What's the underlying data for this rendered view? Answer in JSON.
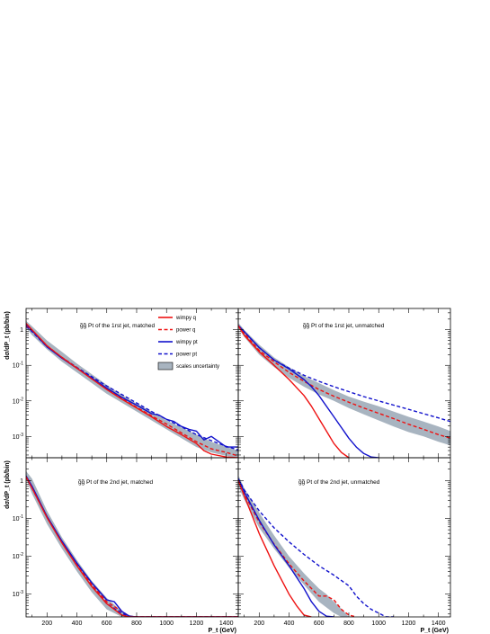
{
  "chart_data": {
    "type": "line",
    "xlabel": "P_t (GeV)",
    "ylabel": "dσ/dP_t (pb/bin)",
    "xlim": [
      60,
      1480
    ],
    "ylim_log10": [
      -3.6,
      0.6
    ],
    "x_ticks": [
      200,
      400,
      600,
      800,
      1000,
      1200,
      1400
    ],
    "x_tick_labels": [
      "200",
      "400",
      "600",
      "800",
      "1000",
      "1200",
      "1400"
    ],
    "y_ticks_log10": [
      0,
      -1,
      -2,
      -3
    ],
    "y_tick_labels": [
      {
        "base": "1",
        "exp": ""
      },
      {
        "base": "10",
        "exp": "-1"
      },
      {
        "base": "10",
        "exp": "-2"
      },
      {
        "base": "10",
        "exp": "-3"
      }
    ],
    "legend": {
      "placement": "top-center of first panel",
      "entries": [
        {
          "key": "wimpy_q",
          "label": "wimpy q",
          "color": "#ee1111",
          "dash": false
        },
        {
          "key": "power_q",
          "label": "power q",
          "color": "#ee1111",
          "dash": true
        },
        {
          "key": "wimpy_pt",
          "label": "wimpy pt",
          "color": "#1111cc",
          "dash": false
        },
        {
          "key": "power_pt",
          "label": "power pt",
          "color": "#1111cc",
          "dash": true
        },
        {
          "key": "band",
          "label": "scales uncertainty",
          "color": "#a8b4c0",
          "box": true
        }
      ]
    },
    "panels": [
      {
        "title_prefix": "g̃g̃",
        "title": " Pt of the 1rst jet, matched",
        "series": {
          "band": {
            "x": [
              60,
              100,
              200,
              300,
              400,
              500,
              600,
              700,
              800,
              900,
              1000,
              1100,
              1200,
              1300,
              1400,
              1480
            ],
            "lo": [
              0.05,
              -0.15,
              -0.55,
              -0.9,
              -1.2,
              -1.5,
              -1.8,
              -2.05,
              -2.3,
              -2.55,
              -2.8,
              -3.05,
              -3.3,
              -3.45,
              -3.55,
              -3.6
            ],
            "hi": [
              0.25,
              0.1,
              -0.3,
              -0.62,
              -0.95,
              -1.25,
              -1.55,
              -1.83,
              -2.08,
              -2.3,
              -2.55,
              -2.75,
              -2.95,
              -3.15,
              -3.3,
              -3.4
            ]
          },
          "wimpy_q": {
            "x": [
              60,
              100,
              200,
              300,
              400,
              500,
              600,
              700,
              800,
              900,
              1000,
              1100,
              1200,
              1250,
              1300,
              1400,
              1480
            ],
            "y": [
              0.18,
              0.0,
              -0.45,
              -0.78,
              -1.08,
              -1.38,
              -1.68,
              -1.95,
              -2.2,
              -2.45,
              -2.72,
              -2.95,
              -3.2,
              -3.4,
              -3.5,
              -3.58,
              -3.6
            ]
          },
          "power_q": {
            "x": [
              60,
              100,
              200,
              300,
              400,
              500,
              600,
              700,
              800,
              900,
              1000,
              1100,
              1200,
              1300,
              1400,
              1480
            ],
            "y": [
              0.12,
              -0.02,
              -0.45,
              -0.78,
              -1.07,
              -1.37,
              -1.66,
              -1.93,
              -2.18,
              -2.42,
              -2.65,
              -2.9,
              -3.15,
              -3.35,
              -3.45,
              -3.55
            ]
          },
          "wimpy_pt": {
            "x": [
              60,
              100,
              200,
              300,
              400,
              500,
              600,
              700,
              800,
              900,
              950,
              1000,
              1050,
              1100,
              1150,
              1200,
              1250,
              1300,
              1350,
              1400,
              1480
            ],
            "y": [
              0.15,
              -0.02,
              -0.48,
              -0.8,
              -1.08,
              -1.36,
              -1.64,
              -1.9,
              -2.12,
              -2.36,
              -2.4,
              -2.52,
              -2.58,
              -2.72,
              -2.8,
              -2.85,
              -3.1,
              -3.0,
              -3.15,
              -3.3,
              -3.3
            ]
          },
          "power_pt": {
            "x": [
              60,
              100,
              200,
              300,
              400,
              500,
              600,
              700,
              800,
              900,
              1000,
              1100,
              1200,
              1300,
              1400,
              1480
            ],
            "y": [
              0.1,
              -0.05,
              -0.48,
              -0.78,
              -1.06,
              -1.32,
              -1.58,
              -1.82,
              -2.06,
              -2.3,
              -2.52,
              -2.73,
              -2.95,
              -3.12,
              -3.28,
              -3.38
            ]
          }
        }
      },
      {
        "title_prefix": "g̃g̃",
        "title": " Pt of the 1rst jet, unmatched",
        "series": {
          "band": {
            "x": [
              60,
              100,
              200,
              300,
              400,
              500,
              600,
              700,
              800,
              900,
              1000,
              1100,
              1200,
              1300,
              1400,
              1480
            ],
            "lo": [
              0.05,
              -0.2,
              -0.7,
              -1.05,
              -1.35,
              -1.6,
              -1.82,
              -2.0,
              -2.2,
              -2.38,
              -2.55,
              -2.72,
              -2.88,
              -3.0,
              -3.15,
              -3.25
            ],
            "hi": [
              0.2,
              0.0,
              -0.42,
              -0.78,
              -1.05,
              -1.3,
              -1.5,
              -1.7,
              -1.88,
              -2.02,
              -2.15,
              -2.3,
              -2.45,
              -2.58,
              -2.72,
              -2.85
            ]
          },
          "wimpy_q": {
            "x": [
              60,
              100,
              200,
              300,
              400,
              500,
              550,
              600,
              650,
              700,
              750,
              800
            ],
            "y": [
              0.12,
              -0.15,
              -0.62,
              -1.0,
              -1.4,
              -1.85,
              -2.15,
              -2.5,
              -2.85,
              -3.2,
              -3.45,
              -3.6
            ]
          },
          "power_q": {
            "x": [
              60,
              100,
              200,
              300,
              400,
              500,
              600,
              700,
              800,
              900,
              1000,
              1100,
              1200,
              1300,
              1400,
              1480
            ],
            "y": [
              0.1,
              -0.1,
              -0.58,
              -0.9,
              -1.2,
              -1.45,
              -1.68,
              -1.87,
              -2.04,
              -2.2,
              -2.35,
              -2.5,
              -2.66,
              -2.8,
              -2.95,
              -3.05
            ]
          },
          "wimpy_pt": {
            "x": [
              60,
              100,
              200,
              300,
              400,
              500,
              550,
              600,
              700,
              750,
              800,
              850,
              900,
              950,
              1000
            ],
            "y": [
              0.12,
              -0.05,
              -0.5,
              -0.85,
              -1.1,
              -1.4,
              -1.6,
              -1.85,
              -2.45,
              -2.75,
              -3.05,
              -3.3,
              -3.48,
              -3.58,
              -3.6
            ]
          },
          "power_pt": {
            "x": [
              60,
              100,
              200,
              300,
              400,
              500,
              600,
              700,
              800,
              900,
              1000,
              1100,
              1200,
              1300,
              1400,
              1480
            ],
            "y": [
              0.12,
              -0.05,
              -0.5,
              -0.85,
              -1.08,
              -1.28,
              -1.45,
              -1.6,
              -1.74,
              -1.88,
              -2.0,
              -2.12,
              -2.24,
              -2.36,
              -2.48,
              -2.58
            ]
          }
        }
      },
      {
        "title_prefix": "g̃g̃",
        "title": " Pt of the 2nd jet, matched",
        "series": {
          "band": {
            "x": [
              60,
              100,
              200,
              300,
              400,
              500,
              600,
              700,
              750,
              800
            ],
            "lo": [
              0.05,
              -0.35,
              -1.15,
              -1.8,
              -2.4,
              -2.95,
              -3.4,
              -3.6,
              -3.6,
              -3.6
            ],
            "hi": [
              0.25,
              0.05,
              -0.8,
              -1.5,
              -2.1,
              -2.65,
              -3.1,
              -3.45,
              -3.55,
              -3.6
            ]
          },
          "wimpy_q": {
            "x": [
              60,
              100,
              200,
              300,
              400,
              500,
              600,
              650,
              700,
              750,
              1480
            ],
            "y": [
              0.1,
              -0.2,
              -0.98,
              -1.65,
              -2.25,
              -2.8,
              -3.25,
              -3.4,
              -3.55,
              -3.6,
              -3.6
            ]
          },
          "power_q": {
            "x": [
              60,
              100,
              200,
              300,
              400,
              500,
              600,
              700,
              750,
              800,
              1480
            ],
            "y": [
              0.08,
              -0.18,
              -0.95,
              -1.62,
              -2.22,
              -2.75,
              -3.2,
              -3.45,
              -3.58,
              -3.6,
              -3.6
            ]
          },
          "wimpy_pt": {
            "x": [
              60,
              100,
              200,
              300,
              400,
              500,
              600,
              650,
              700,
              750,
              800,
              1480
            ],
            "y": [
              0.12,
              -0.15,
              -0.95,
              -1.6,
              -2.18,
              -2.7,
              -3.15,
              -3.2,
              -3.45,
              -3.58,
              -3.6,
              -3.6
            ]
          },
          "power_pt": {
            "x": [
              60,
              100,
              200,
              300,
              400,
              500,
              600,
              700,
              750,
              800,
              1480
            ],
            "y": [
              0.08,
              -0.2,
              -0.97,
              -1.63,
              -2.22,
              -2.76,
              -3.25,
              -3.5,
              -3.6,
              -3.6,
              -3.6
            ]
          }
        }
      },
      {
        "title_prefix": "g̃g̃",
        "title": " Pt of the 2nd jet, unmatched",
        "series": {
          "band": {
            "x": [
              60,
              100,
              200,
              300,
              400,
              500,
              550,
              600,
              650,
              700,
              750,
              800
            ],
            "lo": [
              -0.15,
              -0.5,
              -1.25,
              -1.8,
              -2.3,
              -2.75,
              -2.98,
              -3.2,
              -3.35,
              -3.5,
              -3.6,
              -3.6
            ],
            "hi": [
              0.15,
              -0.2,
              -0.85,
              -1.45,
              -2.0,
              -2.45,
              -2.65,
              -2.85,
              -3.0,
              -3.2,
              -3.38,
              -3.6
            ]
          },
          "wimpy_q": {
            "x": [
              60,
              100,
              200,
              300,
              400,
              450,
              500,
              550
            ],
            "y": [
              0.0,
              -0.4,
              -1.4,
              -2.25,
              -3.0,
              -3.3,
              -3.55,
              -3.6
            ]
          },
          "power_q": {
            "x": [
              60,
              100,
              200,
              300,
              400,
              500,
              600,
              650,
              700,
              750,
              800,
              850
            ],
            "y": [
              0.0,
              -0.35,
              -1.1,
              -1.68,
              -2.2,
              -2.65,
              -3.05,
              -3.05,
              -3.15,
              -3.4,
              -3.55,
              -3.6
            ]
          },
          "wimpy_pt": {
            "x": [
              60,
              100,
              200,
              300,
              400,
              500,
              550,
              600,
              650,
              700
            ],
            "y": [
              0.05,
              -0.3,
              -1.05,
              -1.7,
              -2.25,
              -2.85,
              -3.2,
              -3.45,
              -3.58,
              -3.6
            ]
          },
          "power_pt": {
            "x": [
              60,
              100,
              200,
              300,
              400,
              500,
              600,
              700,
              800,
              850,
              900,
              950,
              1000,
              1050,
              1100
            ],
            "y": [
              0.05,
              -0.25,
              -0.8,
              -1.25,
              -1.62,
              -1.95,
              -2.25,
              -2.5,
              -2.78,
              -3.05,
              -3.25,
              -3.4,
              -3.5,
              -3.6,
              -3.6
            ]
          }
        }
      }
    ]
  }
}
